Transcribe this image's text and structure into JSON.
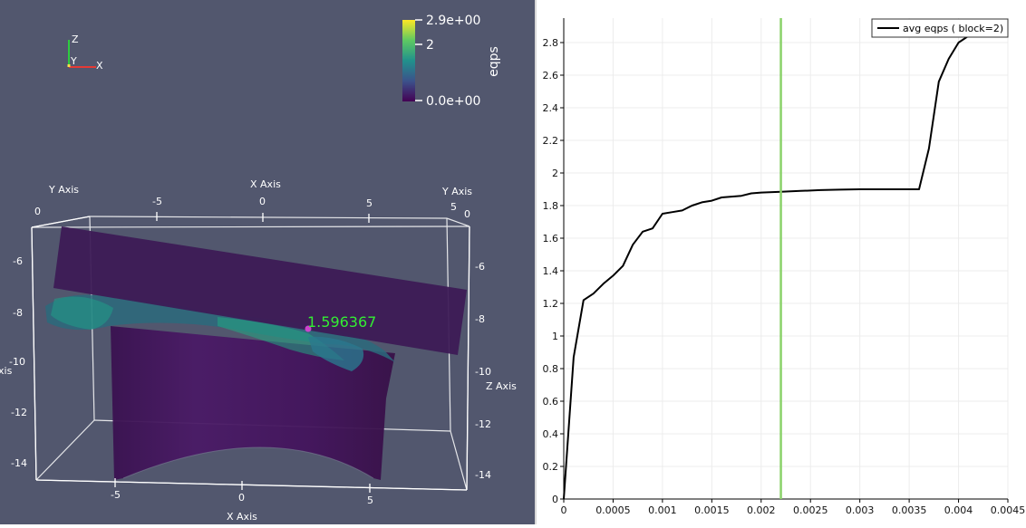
{
  "render_view": {
    "orientation_axes": {
      "z": "Z",
      "y": "Y",
      "x": "X"
    },
    "colorbar": {
      "title": "eqps",
      "max_label": "2.9e+00",
      "mid_label": "2",
      "min_label": "0.0e+00",
      "colors": [
        "#fde725",
        "#5ec962",
        "#21918c",
        "#3b528b",
        "#440154"
      ]
    },
    "axes_grid": {
      "x_axis_top_title": "X Axis",
      "x_axis_bottom_title": "X Axis",
      "y_axis_left_title": "Y Axis",
      "y_axis_right_title": "Y Axis",
      "z_axis_right_title": "Z Axis",
      "z_axis_left_title_fragment": "xis",
      "x_top_ticks": [
        "-5",
        "0",
        "5"
      ],
      "x_bottom_ticks": [
        "-5",
        "0",
        "5"
      ],
      "y_left_tick": "0",
      "y_right_ticks": [
        "5",
        "0"
      ],
      "z_left_ticks": [
        "-6",
        "-8",
        "-10",
        "-12",
        "-14"
      ],
      "z_right_ticks": [
        "-6",
        "-8",
        "-10",
        "-12",
        "-14"
      ]
    },
    "probe_value": "1.596367",
    "colors": {
      "background": "#52576e",
      "plate": "#3d1b56",
      "shell": "#43145c",
      "probe_text": "#33ee33",
      "probe_point": "#cc44cc"
    }
  },
  "chart_data": {
    "type": "line",
    "title": "",
    "xlabel": "",
    "ylabel": "",
    "xlim": [
      0,
      0.0045
    ],
    "ylim": [
      0,
      2.95
    ],
    "x_ticks": [
      "0",
      "0.0005",
      "0.001",
      "0.0015",
      "0.002",
      "0.0025",
      "0.003",
      "0.0035",
      "0.004",
      "0.0045"
    ],
    "y_ticks": [
      "0",
      "0.2",
      "0.4",
      "0.6",
      "0.8",
      "1",
      "1.2",
      "1.4",
      "1.6",
      "1.8",
      "2",
      "2.2",
      "2.4",
      "2.6",
      "2.8"
    ],
    "grid": true,
    "legend_position": "top-right",
    "series": [
      {
        "name": "avg eqps ( block=2)",
        "color": "#000000",
        "x": [
          0,
          0.0001,
          0.0002,
          0.0003,
          0.0004,
          0.0005,
          0.0006,
          0.0007,
          0.0008,
          0.0009,
          0.001,
          0.0011,
          0.0012,
          0.0013,
          0.0014,
          0.0015,
          0.0016,
          0.0017,
          0.0018,
          0.0019,
          0.002,
          0.0022,
          0.0024,
          0.0026,
          0.0028,
          0.003,
          0.0032,
          0.0034,
          0.0036,
          0.0037,
          0.0038,
          0.0039,
          0.004,
          0.0041,
          0.0042
        ],
        "y": [
          0,
          0.87,
          1.22,
          1.26,
          1.32,
          1.37,
          1.43,
          1.56,
          1.64,
          1.66,
          1.75,
          1.76,
          1.77,
          1.8,
          1.82,
          1.83,
          1.85,
          1.855,
          1.86,
          1.875,
          1.88,
          1.885,
          1.89,
          1.895,
          1.898,
          1.9,
          1.9,
          1.9,
          1.9,
          2.15,
          2.56,
          2.7,
          2.8,
          2.84,
          2.87
        ]
      }
    ],
    "time_marker": {
      "x": 0.0022,
      "color": "#8ad26a"
    }
  }
}
